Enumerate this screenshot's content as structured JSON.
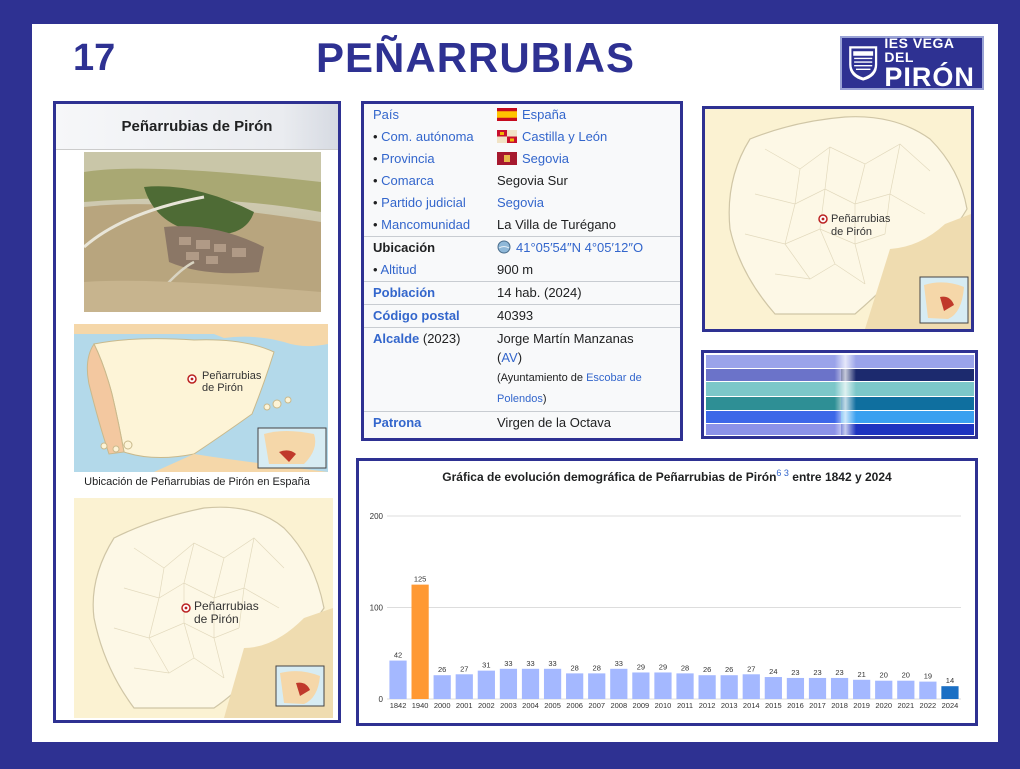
{
  "header": {
    "number": "17",
    "title": "PEÑARRUBIAS",
    "logo_small": "PIRÓN",
    "logo_line1": "IES VEGA DEL",
    "logo_line2": "PIRÓN"
  },
  "left_panel": {
    "title": "Peñarrubias de Pirón",
    "map_label_line1": "Peñarrubias",
    "map_label_line2": "de Pirón",
    "map_caption": "Ubicación de Peñarrubias de Pirón en España"
  },
  "infobox": {
    "pais_label": "País",
    "pais_value": "España",
    "com_label": "Com. autónoma",
    "com_value": "Castilla y León",
    "prov_label": "Provincia",
    "prov_value": "Segovia",
    "comarca_label": "Comarca",
    "comarca_value": "Segovia Sur",
    "partido_label": "Partido judicial",
    "partido_value": "Segovia",
    "manc_label": "Mancomunidad",
    "manc_value": "La Villa de Turégano",
    "ubic_label": "Ubicación",
    "ubic_value": "41°05′54″N 4°05′12″O",
    "alt_label": "Altitud",
    "alt_value": "900 m",
    "pob_label": "Población",
    "pob_value": "14 hab. (2024)",
    "cp_label": "Código postal",
    "cp_value": "40393",
    "alc_label": "Alcalde",
    "alc_year": "(2023)",
    "alc_value": "Jorge Martín Manzanas",
    "alc_party": "AV",
    "alc_note_1": "(Ayuntamiento de ",
    "alc_note_link": "Escobar de Polendos",
    "alc_note_2": ")",
    "pat_label": "Patrona",
    "pat_value": "Virgen de la Octava"
  },
  "right_map": {
    "label_line1": "Peñarrubias",
    "label_line2": "de Pirón"
  },
  "colors": {
    "frame": "#2e3192",
    "link": "#3366cc",
    "bar": "#a4b8ff",
    "bar_1940": "#ff9933",
    "bar_2024": "#1a6fc4"
  },
  "chart_data": {
    "type": "bar",
    "title": "Gráfica de evolución demográfica de Peñarrubias de Pirón",
    "title_refs": "6 3",
    "title_suffix": "entre 1842 y 2024",
    "categories": [
      "1842",
      "1940",
      "2000",
      "2001",
      "2002",
      "2003",
      "2004",
      "2005",
      "2006",
      "2007",
      "2008",
      "2009",
      "2010",
      "2011",
      "2012",
      "2013",
      "2014",
      "2015",
      "2016",
      "2017",
      "2018",
      "2019",
      "2020",
      "2021",
      "2022",
      "2024"
    ],
    "values": [
      42,
      125,
      26,
      27,
      31,
      33,
      33,
      33,
      28,
      28,
      33,
      29,
      29,
      28,
      26,
      26,
      27,
      24,
      23,
      23,
      23,
      21,
      20,
      20,
      19,
      14
    ],
    "ylim": [
      0,
      200
    ],
    "yticks": [
      0,
      100,
      200
    ],
    "grid": true
  }
}
